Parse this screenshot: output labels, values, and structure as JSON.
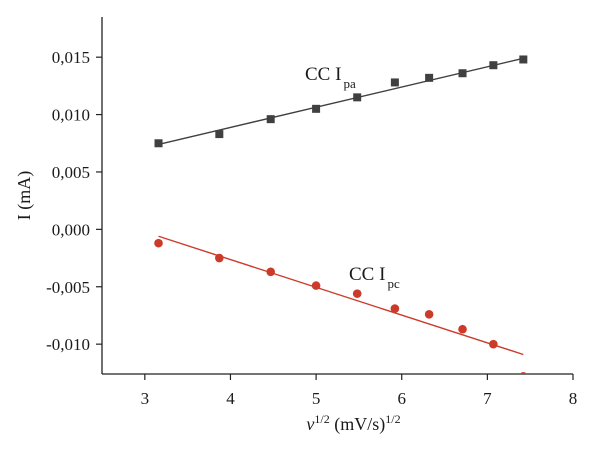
{
  "chart_data": {
    "type": "scatter",
    "xlabel": {
      "main": "v",
      "main_sup": "1/2",
      "unit": " (mV/s)",
      "unit_sup": "1/2"
    },
    "ylabel": "I (mA)",
    "xlim": [
      2.5,
      8
    ],
    "ylim": [
      -0.0126,
      0.0185
    ],
    "x_ticks": [
      3,
      4,
      5,
      6,
      7,
      8
    ],
    "x_tick_labels": [
      "3",
      "4",
      "5",
      "6",
      "7",
      "8"
    ],
    "y_ticks": [
      -0.01,
      -0.005,
      0,
      0.005,
      0.01,
      0.015
    ],
    "y_tick_labels": [
      "-0,010",
      "-0,005",
      "0,000",
      "0,005",
      "0,010",
      "0,015"
    ],
    "grid": false,
    "legend": "none",
    "series": [
      {
        "label_main": "CC I",
        "label_sub": "pa",
        "marker": "square",
        "color": "#404040",
        "line_color": "#404040",
        "points": [
          {
            "x": 3.16,
            "y": 0.0075
          },
          {
            "x": 3.87,
            "y": 0.0083
          },
          {
            "x": 4.47,
            "y": 0.0096
          },
          {
            "x": 5.0,
            "y": 0.0105
          },
          {
            "x": 5.48,
            "y": 0.0115
          },
          {
            "x": 5.92,
            "y": 0.0128
          },
          {
            "x": 6.32,
            "y": 0.0132
          },
          {
            "x": 6.71,
            "y": 0.0136
          },
          {
            "x": 7.07,
            "y": 0.0143
          },
          {
            "x": 7.42,
            "y": 0.0148
          }
        ],
        "fit": [
          {
            "x": 3.16,
            "y": 0.0074
          },
          {
            "x": 7.42,
            "y": 0.0149
          }
        ]
      },
      {
        "label_main": "CC I",
        "label_sub": "pc",
        "marker": "circle",
        "color": "#cc3a2a",
        "line_color": "#cc3a2a",
        "points": [
          {
            "x": 3.16,
            "y": -0.0012
          },
          {
            "x": 3.87,
            "y": -0.0025
          },
          {
            "x": 4.47,
            "y": -0.0037
          },
          {
            "x": 5.0,
            "y": -0.0049
          },
          {
            "x": 5.48,
            "y": -0.0056
          },
          {
            "x": 5.92,
            "y": -0.0069
          },
          {
            "x": 6.32,
            "y": -0.0074
          },
          {
            "x": 6.71,
            "y": -0.0087
          },
          {
            "x": 7.07,
            "y": -0.01
          },
          {
            "x": 7.42,
            "y": -0.0128
          }
        ],
        "fit": [
          {
            "x": 3.16,
            "y": -0.0006
          },
          {
            "x": 7.42,
            "y": -0.0109
          }
        ]
      }
    ]
  }
}
